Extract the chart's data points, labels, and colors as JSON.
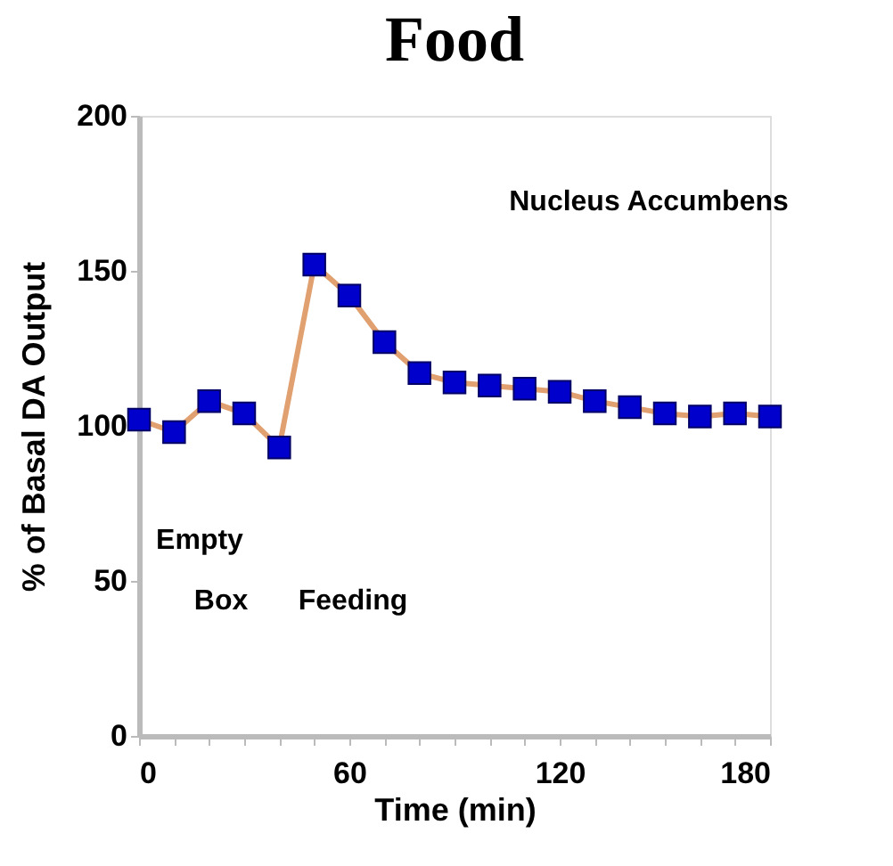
{
  "chart_data": {
    "type": "line",
    "title": "Food",
    "xlabel": "Time (min)",
    "ylabel": "% of Basal DA Output",
    "x": [
      0,
      10,
      20,
      30,
      40,
      50,
      60,
      70,
      80,
      90,
      100,
      110,
      120,
      130,
      140,
      150,
      160,
      170,
      180
    ],
    "series": [
      {
        "color": "#e0a070",
        "values": [
          102,
          98,
          108,
          104,
          93,
          152,
          142,
          127,
          117,
          114,
          113,
          112,
          111,
          108,
          106,
          104,
          103,
          104,
          103
        ]
      }
    ],
    "marker": "square",
    "xlim": [
      0,
      180
    ],
    "ylim": [
      0,
      200
    ],
    "xticks": [
      0,
      {
        "value": 10,
        "label": null
      },
      {
        "value": 20,
        "label": null
      },
      {
        "value": 30,
        "label": null
      },
      {
        "value": 40,
        "label": null
      },
      {
        "value": 50,
        "label": null
      },
      60,
      {
        "value": 70,
        "label": null
      },
      {
        "value": 80,
        "label": null
      },
      {
        "value": 90,
        "label": null
      },
      {
        "value": 100,
        "label": null
      },
      {
        "value": 110,
        "label": null
      },
      120,
      {
        "value": 130,
        "label": null
      },
      {
        "value": 140,
        "label": null
      },
      {
        "value": 150,
        "label": null
      },
      {
        "value": 160,
        "label": null
      },
      {
        "value": 170,
        "label": null
      },
      180
    ],
    "yticks": [
      0,
      50,
      100,
      150,
      200
    ],
    "grid": false,
    "annotations": [
      "Nucleus Accumbens",
      "Empty",
      "Box",
      "Feeding"
    ]
  }
}
